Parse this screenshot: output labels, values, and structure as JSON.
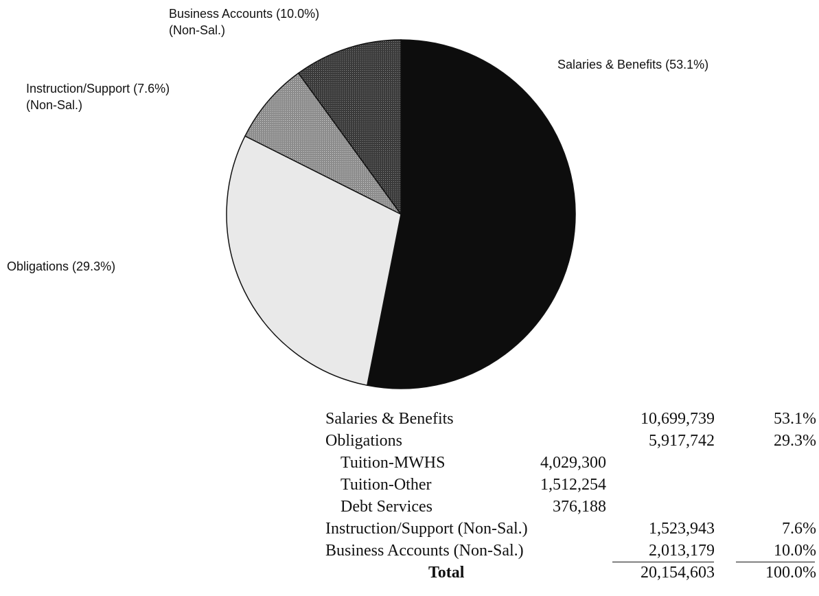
{
  "chart_data": {
    "type": "pie",
    "slices": [
      {
        "label": "Salaries & Benefits (53.1%)",
        "value": 53.1,
        "color": "#0d0d0d"
      },
      {
        "label": "Obligations (29.3%)",
        "value": 29.3,
        "color": "#e8e8e8"
      },
      {
        "label": "Instruction/Support (7.6%)",
        "sublabel": "(Non-Sal.)",
        "value": 7.6,
        "color": "#9a9a9a"
      },
      {
        "label": "Business Accounts (10.0%)",
        "sublabel": "(Non-Sal.)",
        "value": 10.0,
        "color": "#4a4a4a"
      }
    ]
  },
  "table": {
    "rows": [
      {
        "label": "Salaries & Benefits",
        "amount": "10,699,739",
        "percent": "53.1%"
      },
      {
        "label": "Obligations",
        "amount": "5,917,742",
        "percent": "29.3%"
      },
      {
        "sublabel": "Tuition-MWHS",
        "subvalue": "4,029,300"
      },
      {
        "sublabel": "Tuition-Other",
        "subvalue": "1,512,254"
      },
      {
        "sublabel": "Debt Services",
        "subvalue": "376,188"
      },
      {
        "label": "Instruction/Support (Non-Sal.)",
        "amount": "1,523,943",
        "percent": "7.6%"
      },
      {
        "label": "Business Accounts (Non-Sal.)",
        "amount": "2,013,179",
        "percent": "10.0%"
      }
    ],
    "total": {
      "label": "Total",
      "amount": "20,154,603",
      "percent": "100.0%"
    }
  }
}
